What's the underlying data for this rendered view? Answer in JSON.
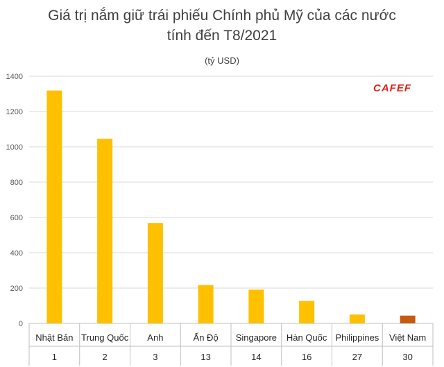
{
  "title_line1": "Giá trị nắm giữ trái phiếu Chính phủ Mỹ của các nước",
  "title_line2": "tính đến T8/2021",
  "unit": "(tỷ USD)",
  "logo": "CAFEF",
  "colors": {
    "bar": "#FFC000",
    "highlight": "#C55A11",
    "grid": "#D9D9D9",
    "axis": "#BFBFBF"
  },
  "chart_data": {
    "type": "bar",
    "title": "Giá trị nắm giữ trái phiếu Chính phủ Mỹ của các nước tính đến T8/2021",
    "ylabel": "(tỷ USD)",
    "xlabel": "",
    "ylim": [
      0,
      1400
    ],
    "yticks": [
      "0",
      "200",
      "400",
      "600",
      "800",
      "1000",
      "1200",
      "1400"
    ],
    "grid": true,
    "categories": [
      "Nhật Bản",
      "Trung Quốc",
      "Anh",
      "Ấn Độ",
      "Singapore",
      "Hàn Quốc",
      "Philippines",
      "Việt Nam"
    ],
    "ranks": [
      "1",
      "2",
      "3",
      "13",
      "14",
      "16",
      "27",
      "30"
    ],
    "values": [
      1319,
      1045,
      568,
      217,
      191,
      127,
      50,
      44
    ],
    "highlight_index": 7
  }
}
